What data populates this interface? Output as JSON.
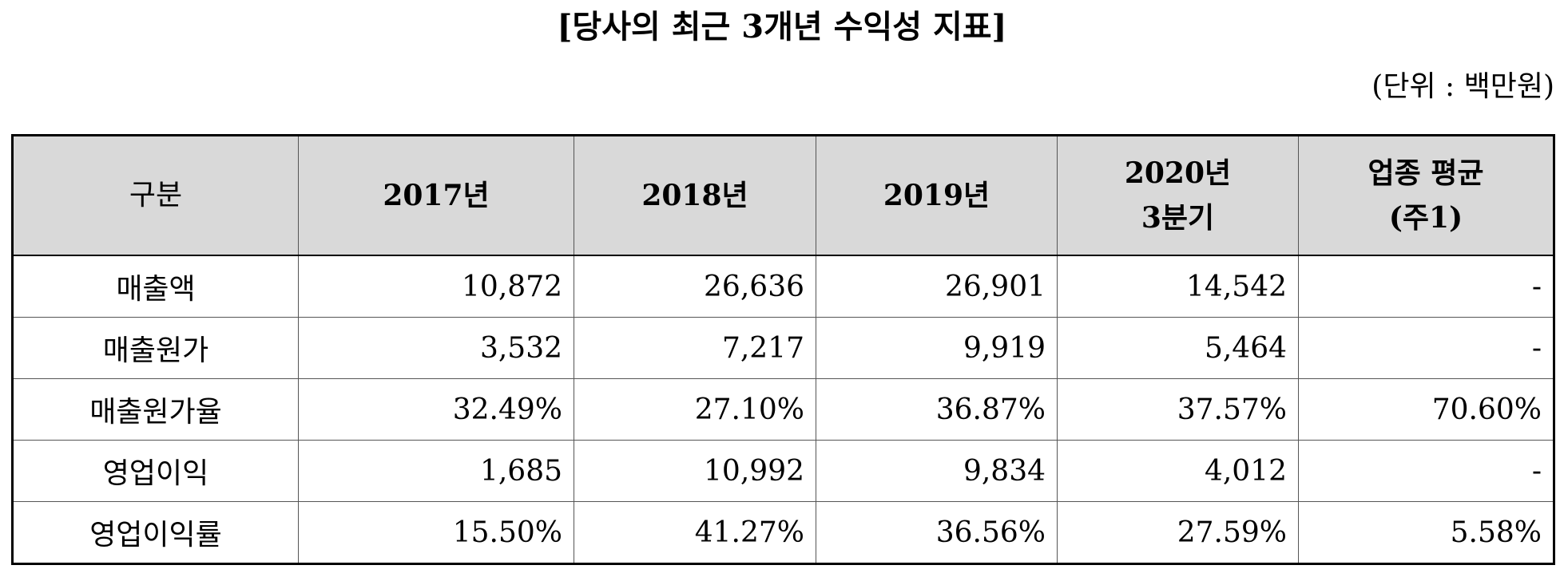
{
  "title": "[당사의 최근 3개년 수익성 지표]",
  "unit": "(단위 : 백만원)",
  "table": {
    "headers": [
      {
        "lines": [
          "구분"
        ]
      },
      {
        "lines": [
          "2017년"
        ]
      },
      {
        "lines": [
          "2018년"
        ]
      },
      {
        "lines": [
          "2019년"
        ]
      },
      {
        "lines": [
          "2020년",
          "3분기"
        ]
      },
      {
        "lines": [
          "업종 평균",
          "(주1)"
        ]
      }
    ],
    "rows": [
      {
        "label": "매출액",
        "values": [
          "10,872",
          "26,636",
          "26,901",
          "14,542",
          "-"
        ]
      },
      {
        "label": "매출원가",
        "values": [
          "3,532",
          "7,217",
          "9,919",
          "5,464",
          "-"
        ]
      },
      {
        "label": "매출원가율",
        "values": [
          "32.49%",
          "27.10%",
          "36.87%",
          "37.57%",
          "70.60%"
        ]
      },
      {
        "label": "영업이익",
        "values": [
          "1,685",
          "10,992",
          "9,834",
          "4,012",
          "-"
        ]
      },
      {
        "label": "영업이익률",
        "values": [
          "15.50%",
          "41.27%",
          "36.56%",
          "27.59%",
          "5.58%"
        ]
      }
    ]
  }
}
